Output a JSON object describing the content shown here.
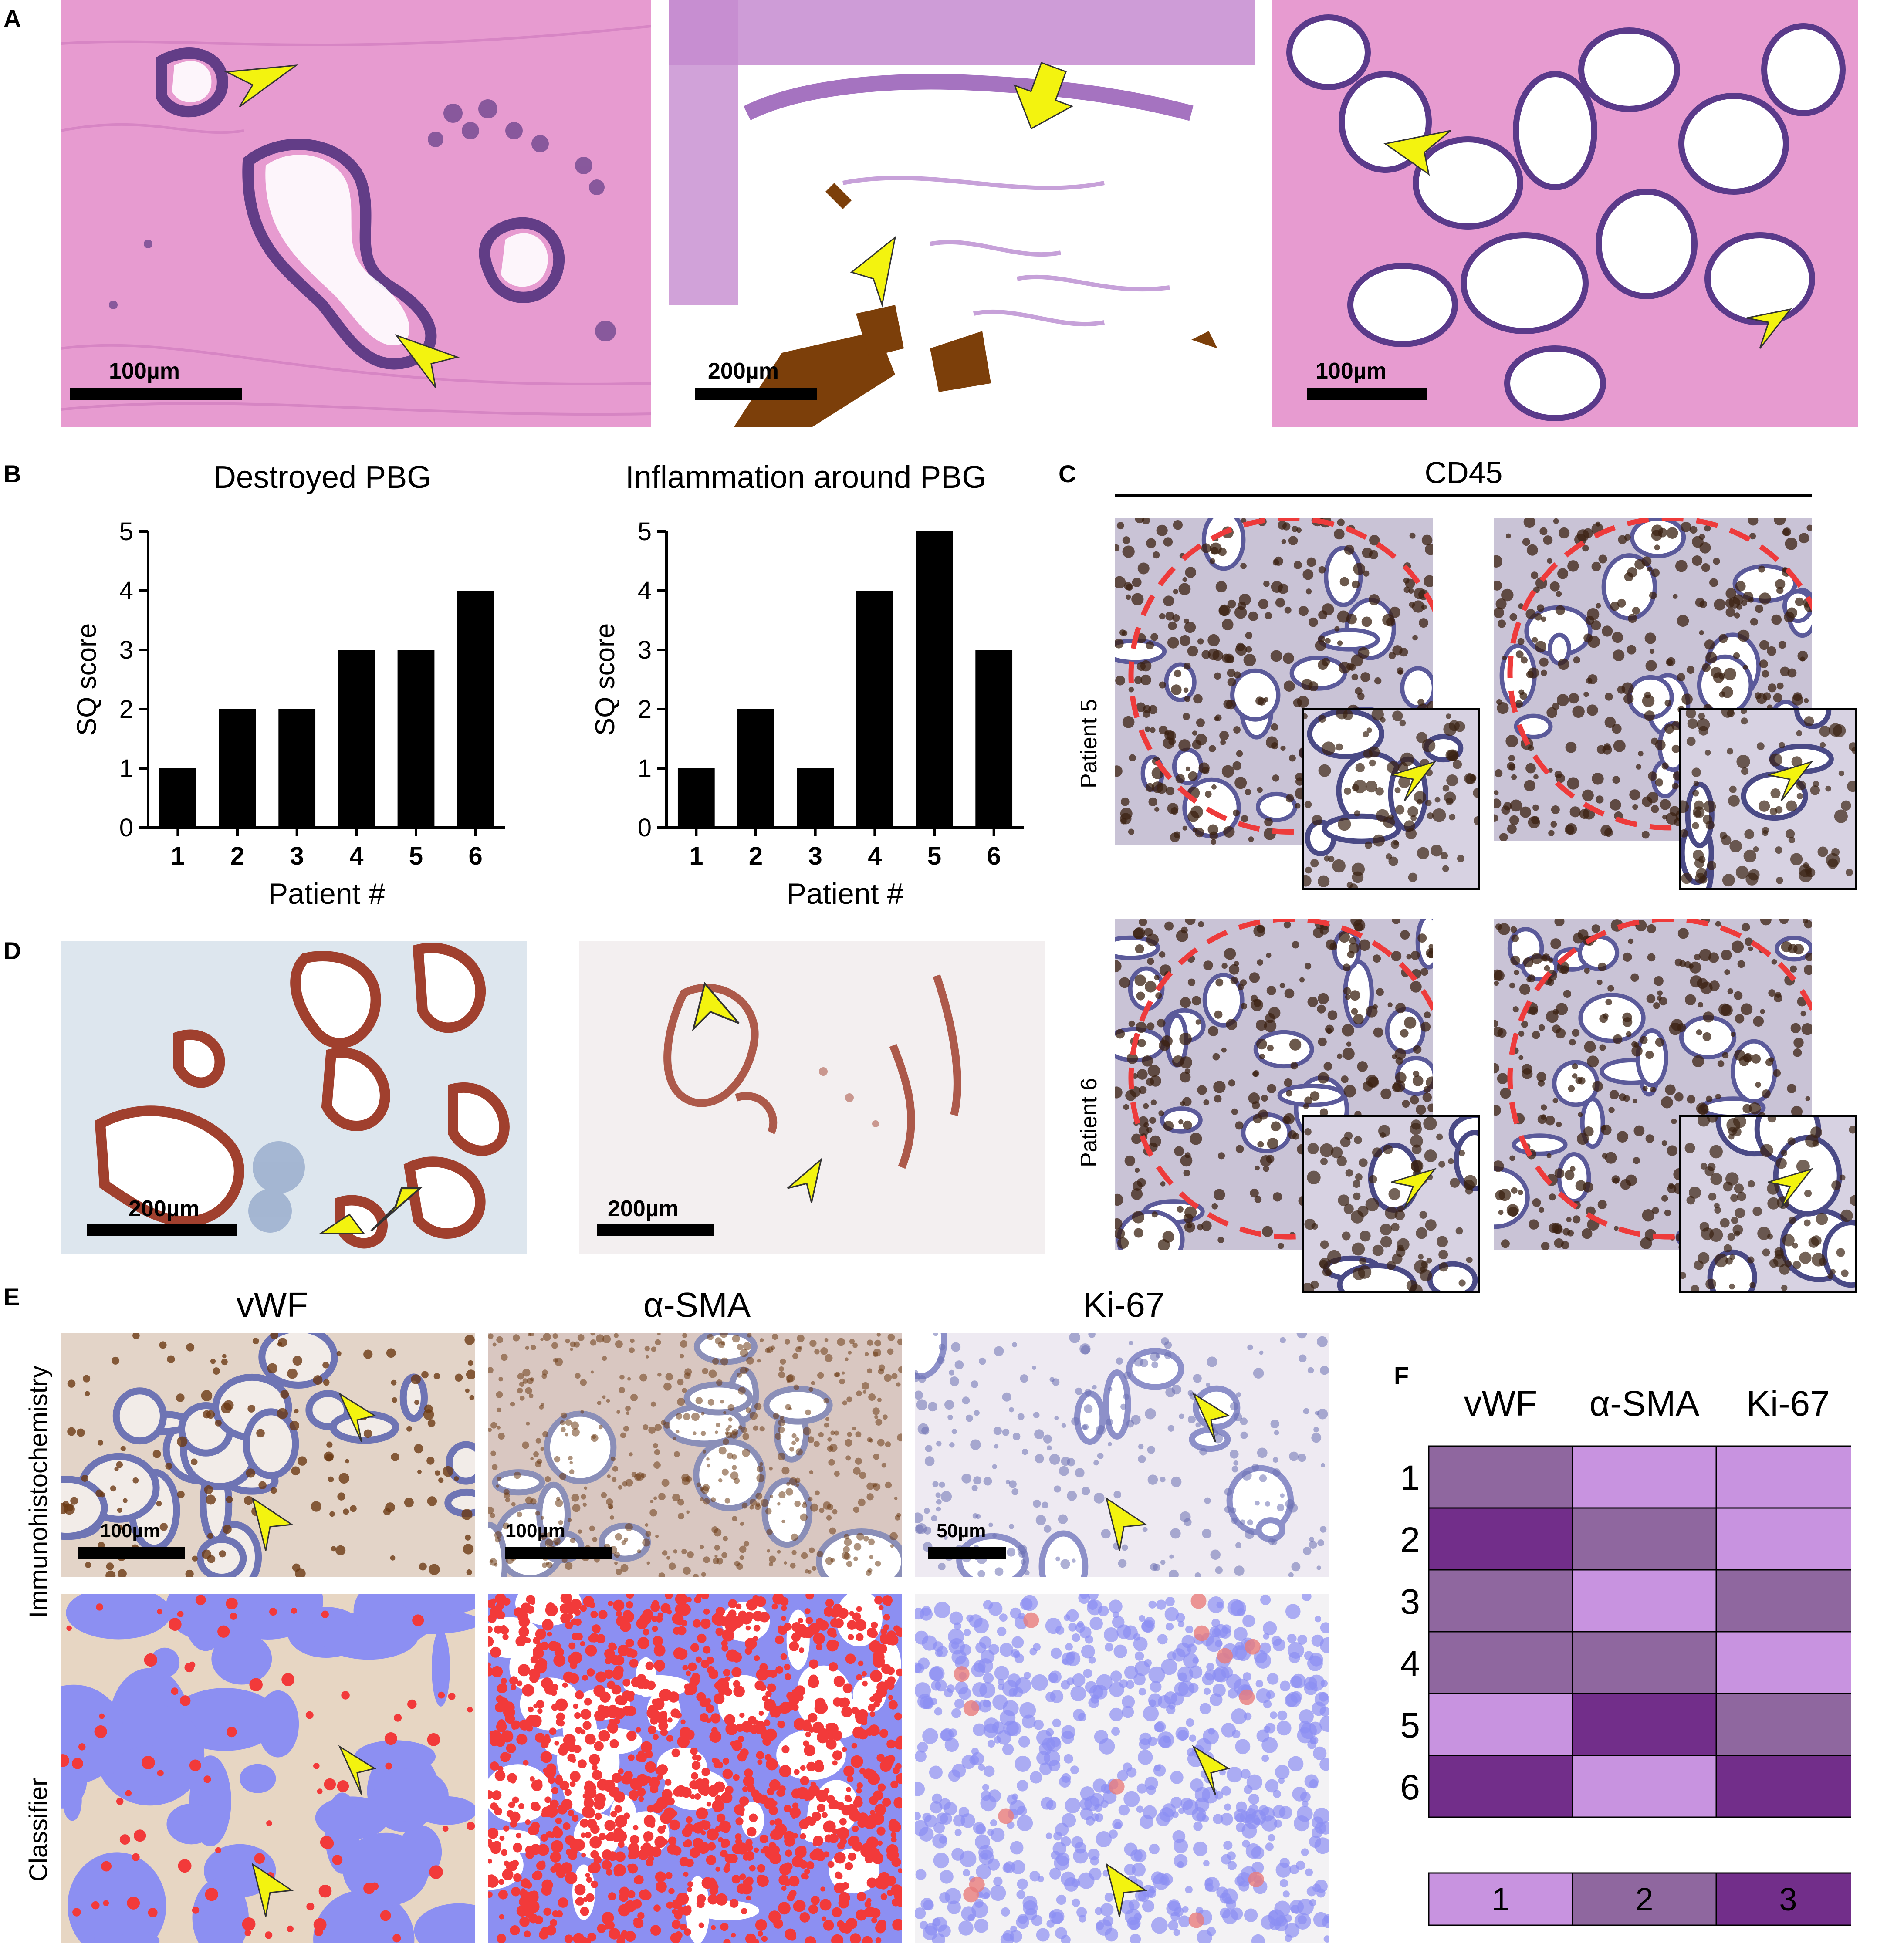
{
  "panel_letters": [
    "A",
    "B",
    "C",
    "D",
    "E",
    "F"
  ],
  "panel_a": {
    "scale_labels": [
      "100µm",
      "200µm",
      "100µm"
    ]
  },
  "panel_c": {
    "title": "CD45",
    "row_labels": [
      "Patient 5",
      "Patient 6"
    ]
  },
  "panel_d": {
    "scale_labels": [
      "200µm",
      "200µm"
    ]
  },
  "panel_e": {
    "column_titles": [
      "vWF",
      "α-SMA",
      "Ki-67"
    ],
    "row_labels": [
      "Immunohistochemistry",
      "Classifier"
    ],
    "scale_labels": [
      "100µm",
      "100µm",
      "50µm"
    ]
  },
  "colors": {
    "he_pink": "#e79bd0",
    "ihc_bg": "#e8e4ee",
    "classifier_blue": "#8c8ff2",
    "classifier_red": "#f23a3a",
    "arrow_yellow": "#f3f30f",
    "roi_red": "#ee3b3b",
    "bar": "#000000",
    "heat_1": "#c893e0",
    "heat_2": "#8f679f",
    "heat_3": "#722e8a"
  },
  "chart_data": [
    {
      "type": "bar",
      "title": "Destroyed PBG",
      "xlabel": "Patient #",
      "ylabel": "SQ score",
      "categories": [
        "1",
        "2",
        "3",
        "4",
        "5",
        "6"
      ],
      "values": [
        1,
        2,
        2,
        3,
        3,
        4
      ],
      "ylim": [
        0,
        5
      ],
      "yticks": [
        "0",
        "1",
        "2",
        "3",
        "4",
        "5"
      ]
    },
    {
      "type": "bar",
      "title": "Inflammation around PBG",
      "xlabel": "Patient #",
      "ylabel": "SQ score",
      "categories": [
        "1",
        "2",
        "3",
        "4",
        "5",
        "6"
      ],
      "values": [
        1,
        2,
        1,
        4,
        5,
        3
      ],
      "ylim": [
        0,
        5
      ],
      "yticks": [
        "0",
        "1",
        "2",
        "3",
        "4",
        "5"
      ]
    },
    {
      "type": "heatmap",
      "columns": [
        "vWF",
        "α-SMA",
        "Ki-67"
      ],
      "rows": [
        "1",
        "2",
        "3",
        "4",
        "5",
        "6"
      ],
      "values": [
        [
          2,
          1,
          1
        ],
        [
          3,
          2,
          1
        ],
        [
          2,
          1,
          2
        ],
        [
          2,
          2,
          1
        ],
        [
          1,
          3,
          2
        ],
        [
          3,
          1,
          3
        ]
      ],
      "legend": [
        "1",
        "2",
        "3"
      ]
    }
  ]
}
